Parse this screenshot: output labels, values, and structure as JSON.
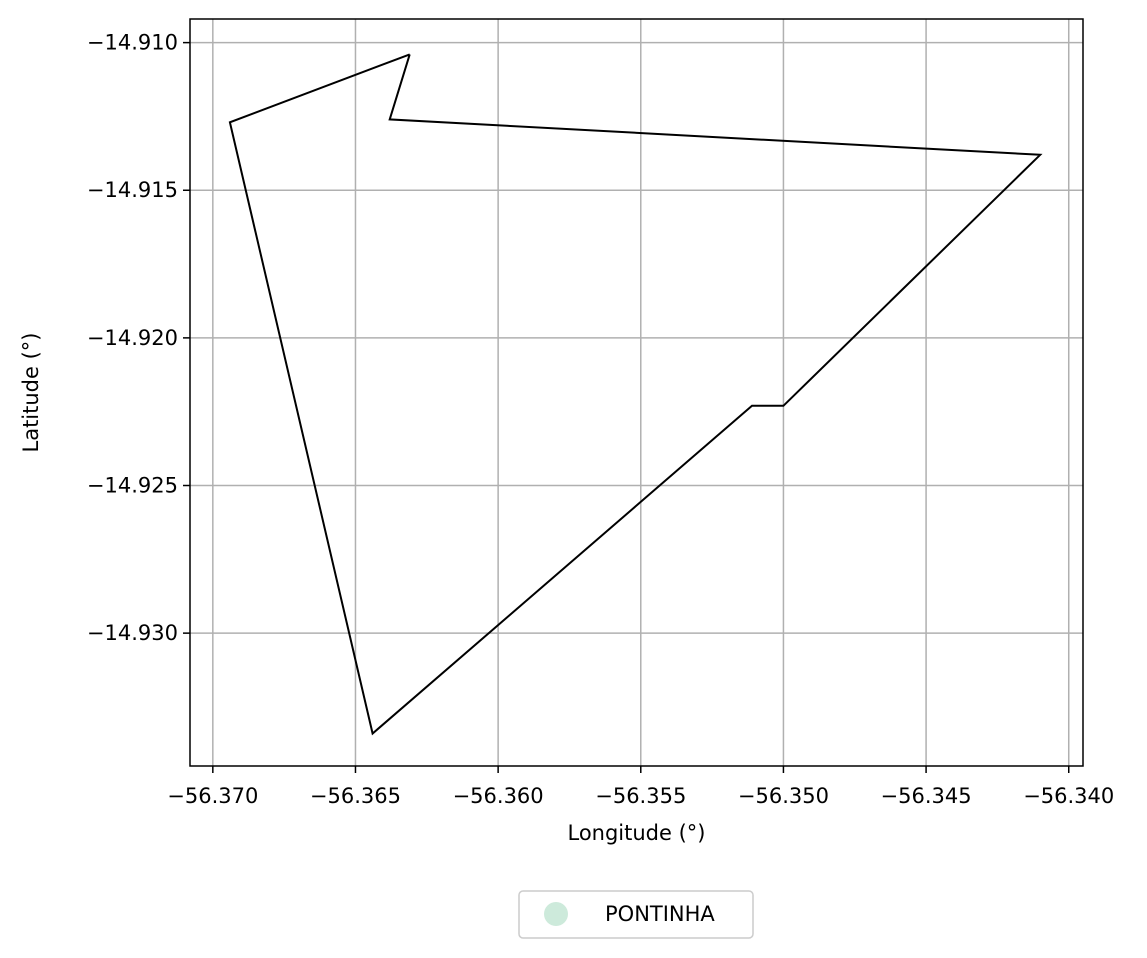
{
  "chart_data": {
    "type": "line",
    "xlabel": "Longitude (°)",
    "ylabel": "Latitude (°)",
    "xlim": [
      -56.3708,
      -56.3395
    ],
    "ylim": [
      -14.9345,
      -14.9092
    ],
    "xticks": [
      -56.37,
      -56.365,
      -56.36,
      -56.355,
      -56.35,
      -56.345,
      -56.34
    ],
    "xtick_labels": [
      "−56.370",
      "−56.365",
      "−56.360",
      "−56.355",
      "−56.350",
      "−56.345",
      "−56.340"
    ],
    "yticks": [
      -14.91,
      -14.915,
      -14.92,
      -14.925,
      -14.93
    ],
    "ytick_labels": [
      "−14.910",
      "−14.915",
      "−14.920",
      "−14.925",
      "−14.930"
    ],
    "grid": true,
    "legend_position": "bottom-center",
    "series": [
      {
        "name": "PONTINHA",
        "marker_color": "#cdeadb",
        "line_color": "#000000",
        "points": [
          [
            -56.3631,
            -14.9104
          ],
          [
            -56.3638,
            -14.9126
          ],
          [
            -56.341,
            -14.9138
          ],
          [
            -56.35,
            -14.9223
          ],
          [
            -56.3511,
            -14.9223
          ],
          [
            -56.3644,
            -14.9334
          ],
          [
            -56.3694,
            -14.9127
          ],
          [
            -56.3631,
            -14.9104
          ]
        ]
      }
    ]
  }
}
